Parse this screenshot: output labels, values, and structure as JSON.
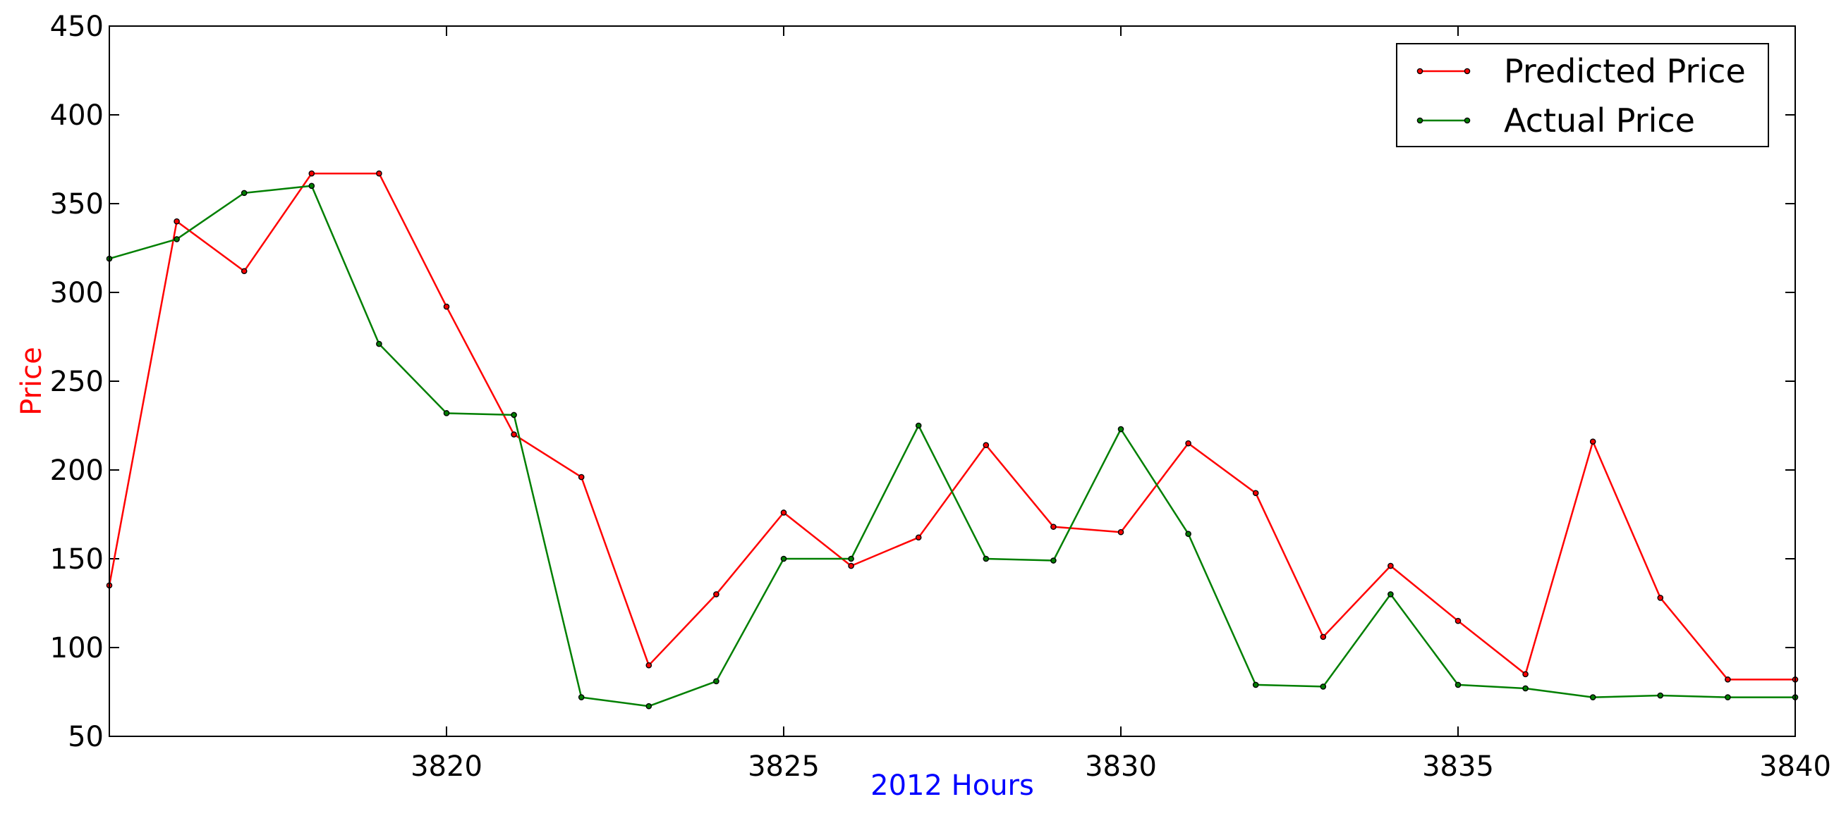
{
  "chart_data": {
    "type": "line",
    "xlabel": "2012 Hours",
    "ylabel": "Price",
    "xlabel_color": "#0000ff",
    "ylabel_color": "#ff0000",
    "xlim": [
      3815,
      3840
    ],
    "ylim": [
      50,
      450
    ],
    "xticks": [
      3820,
      3825,
      3830,
      3835,
      3840
    ],
    "yticks": [
      50,
      100,
      150,
      200,
      250,
      300,
      350,
      400,
      450
    ],
    "grid": false,
    "legend_position": "top-right",
    "x": [
      3815,
      3816,
      3817,
      3818,
      3819,
      3820,
      3821,
      3822,
      3823,
      3824,
      3825,
      3826,
      3827,
      3828,
      3829,
      3830,
      3831,
      3832,
      3833,
      3834,
      3835,
      3836,
      3837,
      3838,
      3839,
      3840
    ],
    "series": [
      {
        "name": "Predicted Price",
        "color": "#ff0000",
        "values": [
          135,
          340,
          312,
          367,
          367,
          292,
          220,
          196,
          90,
          130,
          176,
          146,
          162,
          214,
          168,
          165,
          215,
          187,
          106,
          146,
          115,
          85,
          216,
          128,
          82,
          82
        ]
      },
      {
        "name": "Actual Price",
        "color": "#007f00",
        "values": [
          319,
          330,
          356,
          360,
          271,
          232,
          231,
          72,
          67,
          81,
          150,
          150,
          225,
          150,
          149,
          223,
          164,
          79,
          78,
          130,
          79,
          77,
          72,
          73,
          72,
          72
        ]
      }
    ]
  }
}
